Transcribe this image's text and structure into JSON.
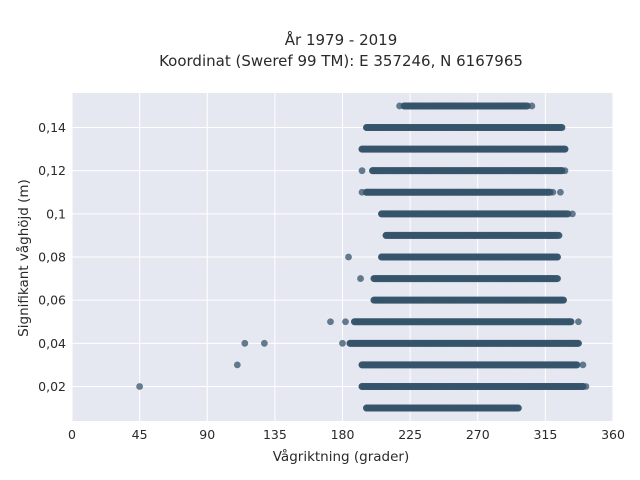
{
  "chart_data": {
    "type": "scatter",
    "title_line1": "År 1979 - 2019",
    "title_line2": "Koordinat (Sweref 99 TM): E 357246, N 6167965",
    "xlabel": "Vågriktning (grader)",
    "ylabel": "Signifikant våghöjd (m)",
    "xlim": [
      0,
      360
    ],
    "ylim": [
      0.004,
      0.156
    ],
    "x_ticks": [
      0,
      45,
      90,
      135,
      180,
      225,
      270,
      315,
      360
    ],
    "x_tick_labels": [
      "0",
      "45",
      "90",
      "135",
      "180",
      "225",
      "270",
      "315",
      "360"
    ],
    "y_ticks": [
      0.02,
      0.04,
      0.06,
      0.08,
      0.1,
      0.12,
      0.14
    ],
    "y_tick_labels": [
      "0,02",
      "0,04",
      "0,06",
      "0,08",
      "0,1",
      "0,12",
      "0,14"
    ],
    "grid": true,
    "plot_background": "#e5e8f1",
    "marker_color": "#36546b",
    "bands": [
      {
        "y": 0.01,
        "x_min": 196,
        "x_max": 297
      },
      {
        "y": 0.02,
        "x_min": 193,
        "x_max": 340
      },
      {
        "y": 0.03,
        "x_min": 193,
        "x_max": 336
      },
      {
        "y": 0.04,
        "x_min": 185,
        "x_max": 337
      },
      {
        "y": 0.05,
        "x_min": 188,
        "x_max": 332
      },
      {
        "y": 0.06,
        "x_min": 201,
        "x_max": 327
      },
      {
        "y": 0.07,
        "x_min": 201,
        "x_max": 323
      },
      {
        "y": 0.08,
        "x_min": 206,
        "x_max": 323
      },
      {
        "y": 0.09,
        "x_min": 209,
        "x_max": 324
      },
      {
        "y": 0.1,
        "x_min": 206,
        "x_max": 330
      },
      {
        "y": 0.11,
        "x_min": 196,
        "x_max": 318
      },
      {
        "y": 0.12,
        "x_min": 200,
        "x_max": 326
      },
      {
        "y": 0.13,
        "x_min": 193,
        "x_max": 328
      },
      {
        "y": 0.14,
        "x_min": 196,
        "x_max": 326
      },
      {
        "y": 0.15,
        "x_min": 221,
        "x_max": 303
      }
    ],
    "scattered_points": [
      {
        "x": 45,
        "y": 0.02
      },
      {
        "x": 110,
        "y": 0.03
      },
      {
        "x": 115,
        "y": 0.04
      },
      {
        "x": 128,
        "y": 0.04
      },
      {
        "x": 172,
        "y": 0.05
      },
      {
        "x": 182,
        "y": 0.05
      },
      {
        "x": 180,
        "y": 0.04
      },
      {
        "x": 184,
        "y": 0.08
      },
      {
        "x": 192,
        "y": 0.07
      },
      {
        "x": 193,
        "y": 0.11
      },
      {
        "x": 193,
        "y": 0.12
      },
      {
        "x": 196,
        "y": 0.11
      },
      {
        "x": 201,
        "y": 0.12
      },
      {
        "x": 218,
        "y": 0.15
      },
      {
        "x": 306,
        "y": 0.15
      },
      {
        "x": 333,
        "y": 0.1
      },
      {
        "x": 325,
        "y": 0.12
      },
      {
        "x": 328,
        "y": 0.12
      },
      {
        "x": 320,
        "y": 0.11
      },
      {
        "x": 325,
        "y": 0.11
      },
      {
        "x": 320,
        "y": 0.08
      },
      {
        "x": 325,
        "y": 0.06
      },
      {
        "x": 318,
        "y": 0.07
      },
      {
        "x": 318,
        "y": 0.09
      },
      {
        "x": 337,
        "y": 0.05
      },
      {
        "x": 340,
        "y": 0.03
      },
      {
        "x": 342,
        "y": 0.02
      },
      {
        "x": 333,
        "y": 0.03
      },
      {
        "x": 335,
        "y": 0.04
      },
      {
        "x": 322,
        "y": 0.04
      },
      {
        "x": 330,
        "y": 0.05
      },
      {
        "x": 320,
        "y": 0.02
      },
      {
        "x": 325,
        "y": 0.03
      }
    ]
  }
}
